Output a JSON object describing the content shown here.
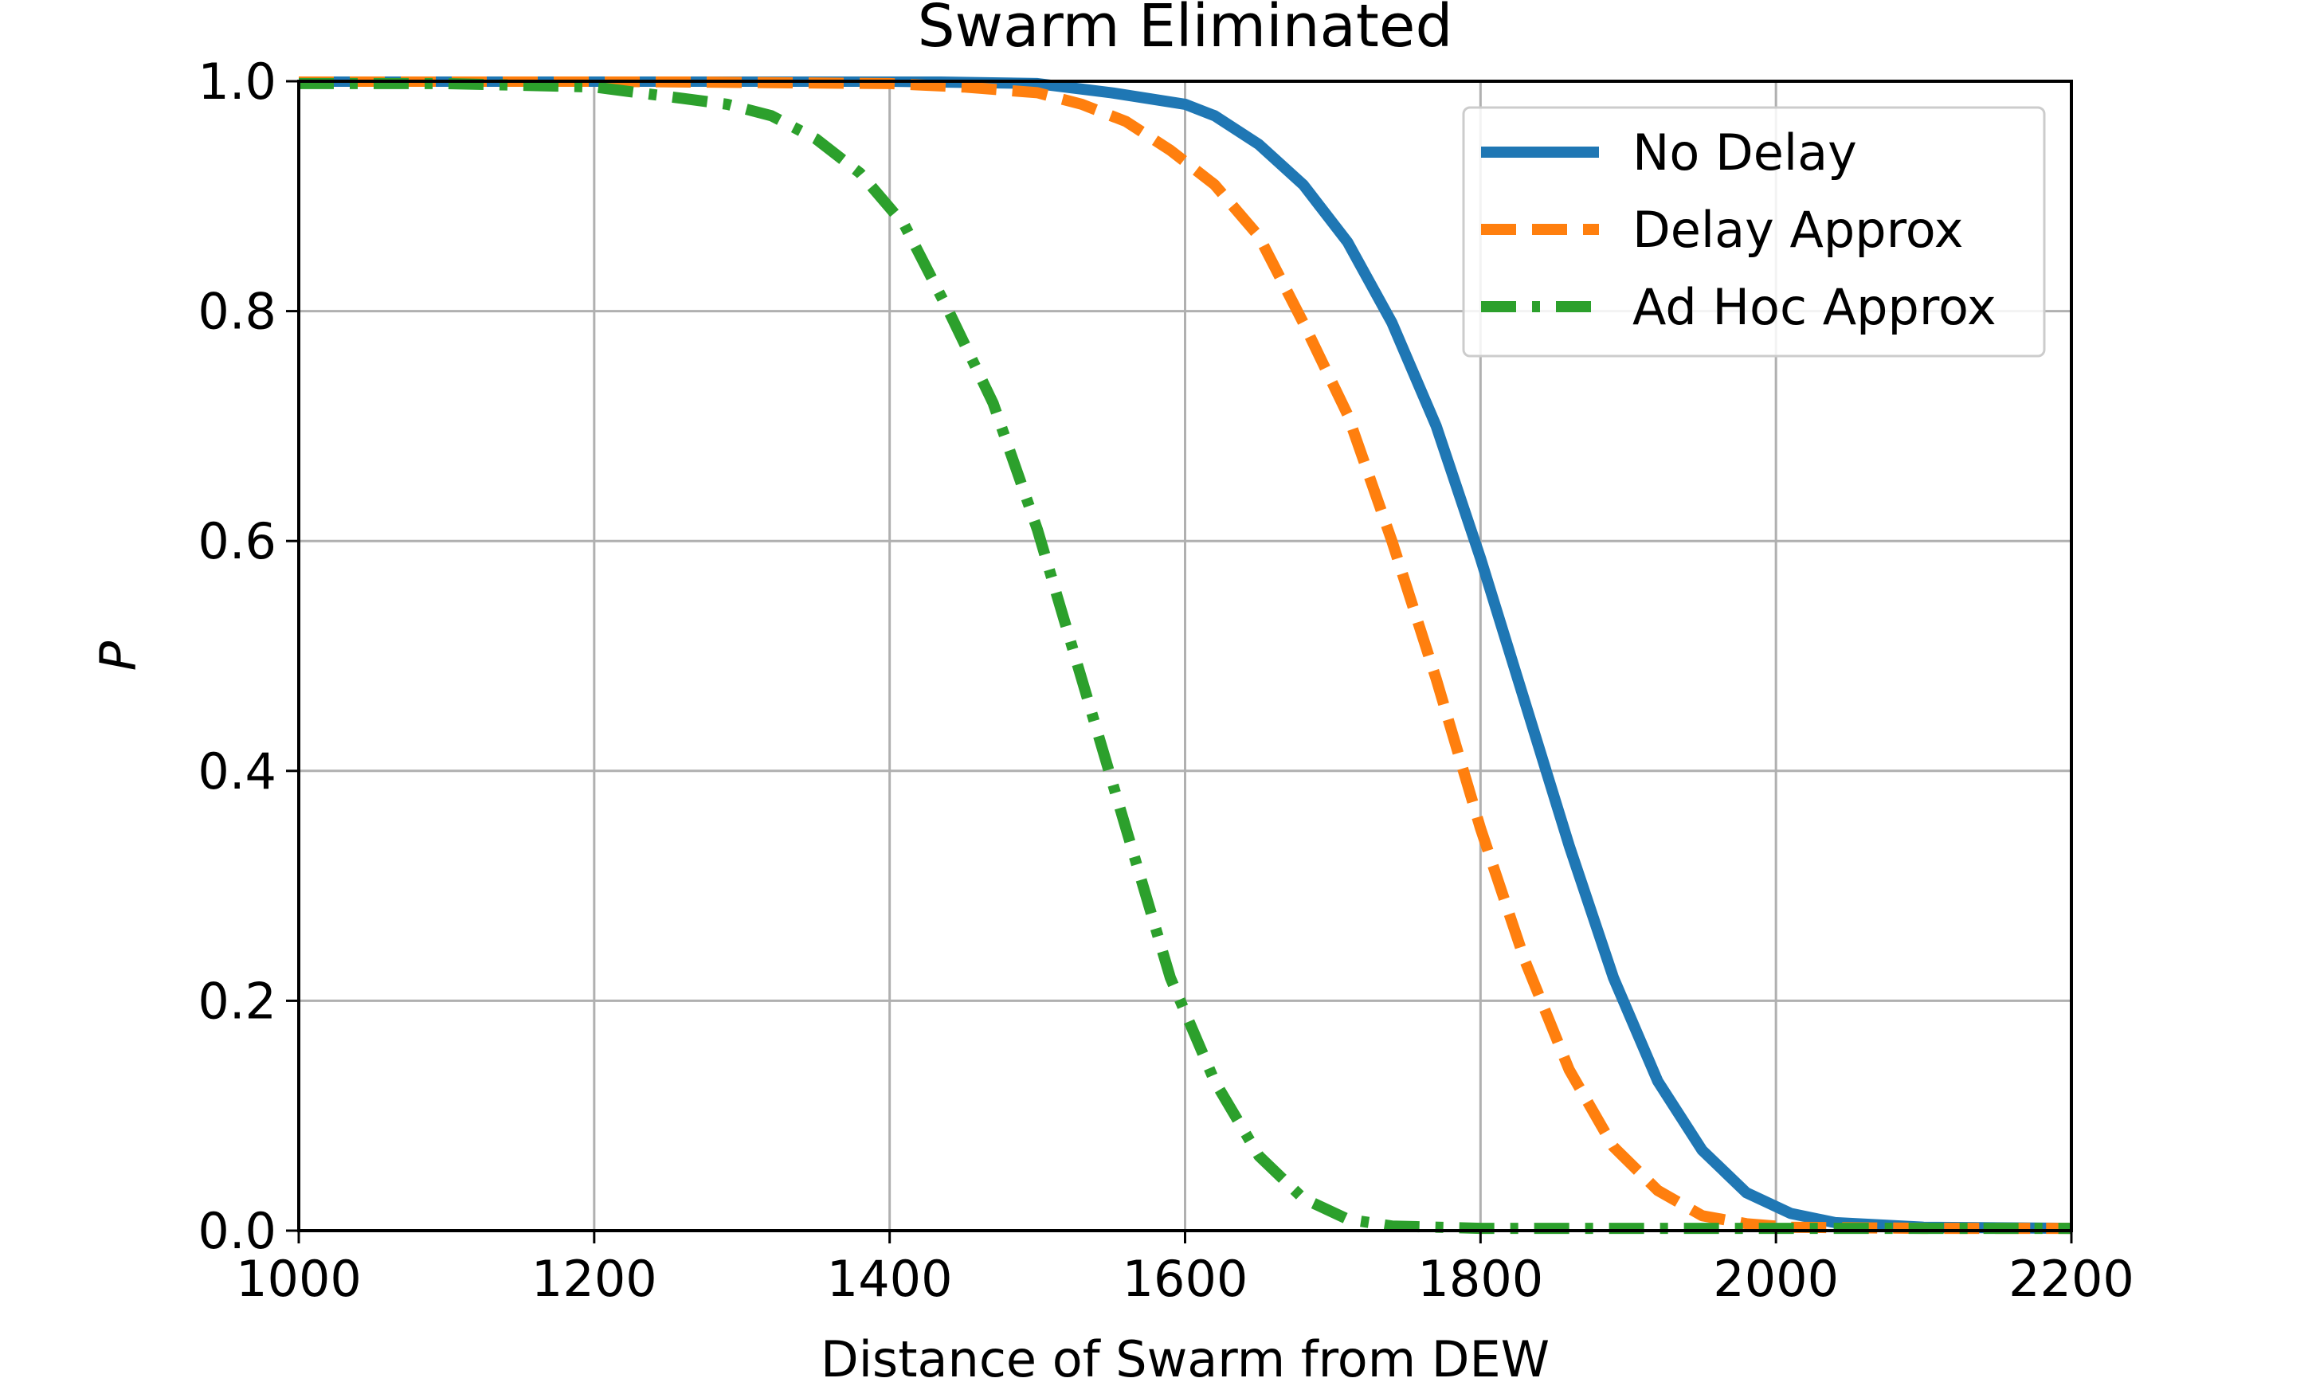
{
  "chart_data": {
    "type": "line",
    "title": "Swarm Eliminated",
    "xlabel": "Distance of Swarm from DEW",
    "ylabel": "P",
    "xlim": [
      1000,
      2200
    ],
    "ylim": [
      0.0,
      1.0
    ],
    "xticks": [
      "1000",
      "1200",
      "1400",
      "1600",
      "1800",
      "2000",
      "2200"
    ],
    "yticks": [
      "0.0",
      "0.2",
      "0.4",
      "0.6",
      "0.8",
      "1.0"
    ],
    "grid": true,
    "legend_position": "upper right",
    "series": [
      {
        "name": "No Delay",
        "color": "#1f77b4",
        "style": "solid",
        "x": [
          1000,
          1200,
          1400,
          1500,
          1550,
          1600,
          1620,
          1650,
          1680,
          1710,
          1740,
          1770,
          1800,
          1830,
          1860,
          1890,
          1920,
          1950,
          1980,
          2010,
          2040,
          2100,
          2200
        ],
        "y": [
          1.0,
          1.0,
          1.0,
          0.998,
          0.99,
          0.98,
          0.97,
          0.945,
          0.91,
          0.86,
          0.79,
          0.7,
          0.585,
          0.46,
          0.335,
          0.22,
          0.13,
          0.07,
          0.033,
          0.015,
          0.007,
          0.003,
          0.002
        ]
      },
      {
        "name": "Delay Approx",
        "color": "#ff7f0e",
        "style": "dashed",
        "x": [
          1000,
          1200,
          1400,
          1450,
          1500,
          1530,
          1560,
          1590,
          1620,
          1650,
          1680,
          1710,
          1740,
          1770,
          1800,
          1830,
          1860,
          1890,
          1920,
          1950,
          1980,
          2010,
          2100,
          2200
        ],
        "y": [
          1.0,
          1.0,
          0.998,
          0.995,
          0.99,
          0.98,
          0.965,
          0.94,
          0.91,
          0.865,
          0.79,
          0.71,
          0.6,
          0.48,
          0.35,
          0.235,
          0.14,
          0.073,
          0.035,
          0.013,
          0.006,
          0.003,
          0.002,
          0.002
        ]
      },
      {
        "name": "Ad Hoc Approx",
        "color": "#2ca02c",
        "style": "dashdot",
        "x": [
          1000,
          1100,
          1200,
          1260,
          1290,
          1320,
          1350,
          1380,
          1410,
          1440,
          1470,
          1500,
          1530,
          1560,
          1590,
          1620,
          1650,
          1680,
          1710,
          1740,
          1800,
          1900,
          2000,
          2200
        ],
        "y": [
          0.998,
          0.998,
          0.995,
          0.985,
          0.98,
          0.97,
          0.95,
          0.92,
          0.875,
          0.8,
          0.72,
          0.61,
          0.48,
          0.35,
          0.22,
          0.13,
          0.065,
          0.028,
          0.01,
          0.004,
          0.002,
          0.002,
          0.002,
          0.002
        ]
      }
    ]
  }
}
